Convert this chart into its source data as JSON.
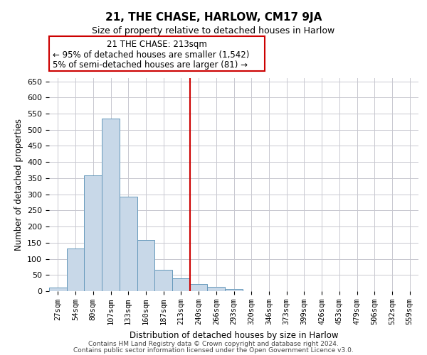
{
  "title": "21, THE CHASE, HARLOW, CM17 9JA",
  "subtitle": "Size of property relative to detached houses in Harlow",
  "xlabel": "Distribution of detached houses by size in Harlow",
  "ylabel": "Number of detached properties",
  "bar_labels": [
    "27sqm",
    "54sqm",
    "80sqm",
    "107sqm",
    "133sqm",
    "160sqm",
    "187sqm",
    "213sqm",
    "240sqm",
    "266sqm",
    "293sqm",
    "320sqm",
    "346sqm",
    "373sqm",
    "399sqm",
    "426sqm",
    "453sqm",
    "479sqm",
    "506sqm",
    "532sqm",
    "559sqm"
  ],
  "bar_values": [
    10,
    133,
    358,
    535,
    292,
    158,
    65,
    40,
    22,
    14,
    6,
    0,
    0,
    0,
    0,
    1,
    0,
    0,
    0,
    1,
    0
  ],
  "bar_color": "#c8d8e8",
  "bar_edge_color": "#6699bb",
  "grid_color": "#c8c8d0",
  "background_color": "#ffffff",
  "vline_color": "#cc0000",
  "annotation_box_edge_color": "#cc0000",
  "annotation_title": "21 THE CHASE: 213sqm",
  "annotation_line1": "← 95% of detached houses are smaller (1,542)",
  "annotation_line2": "5% of semi-detached houses are larger (81) →",
  "ylim": [
    0,
    660
  ],
  "yticks": [
    0,
    50,
    100,
    150,
    200,
    250,
    300,
    350,
    400,
    450,
    500,
    550,
    600,
    650
  ],
  "footer1": "Contains HM Land Registry data © Crown copyright and database right 2024.",
  "footer2": "Contains public sector information licensed under the Open Government Licence v3.0."
}
